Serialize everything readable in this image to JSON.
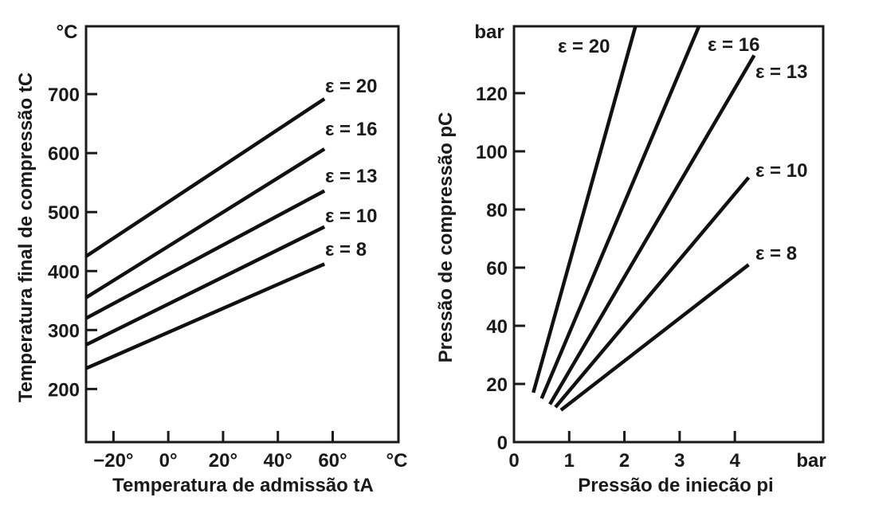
{
  "colors": {
    "ink": "#111111",
    "background": "#ffffff"
  },
  "chart_data": [
    {
      "type": "line",
      "ylabel": "Temperatura final de compressão tC",
      "xlabel": "Temperatura de admissão tA",
      "x_unit": "°C",
      "y_unit": "°C",
      "xlim": [
        -30,
        84
      ],
      "ylim": [
        110,
        815
      ],
      "x_ticks": [
        {
          "value": -20,
          "label": "-20°"
        },
        {
          "value": 0,
          "label": "0°"
        },
        {
          "value": 20,
          "label": "20°"
        },
        {
          "value": 40,
          "label": "40°"
        },
        {
          "value": 60,
          "label": "60°"
        }
      ],
      "y_ticks": [
        {
          "value": 200,
          "label": "200"
        },
        {
          "value": 300,
          "label": "300"
        },
        {
          "value": 400,
          "label": "400"
        },
        {
          "value": 500,
          "label": "500"
        },
        {
          "value": 600,
          "label": "600"
        },
        {
          "value": 700,
          "label": "700"
        }
      ],
      "grid": false,
      "series": [
        {
          "name": "ε = 20",
          "x": [
            -30,
            57
          ],
          "y": [
            425,
            692
          ]
        },
        {
          "name": "ε = 16",
          "x": [
            -30,
            57
          ],
          "y": [
            355,
            607
          ]
        },
        {
          "name": "ε = 13",
          "x": [
            -30,
            57
          ],
          "y": [
            320,
            536
          ]
        },
        {
          "name": "ε = 10",
          "x": [
            -30,
            57
          ],
          "y": [
            275,
            475
          ]
        },
        {
          "name": "ε = 8",
          "x": [
            -30,
            57
          ],
          "y": [
            235,
            412
          ]
        }
      ]
    },
    {
      "type": "line",
      "ylabel": "Pressão de compressão pC",
      "xlabel": "Pressão de iniecão pi",
      "x_unit": "bar",
      "y_unit": "bar",
      "xlim": [
        0,
        5.6
      ],
      "ylim": [
        0,
        143
      ],
      "x_ticks": [
        {
          "value": 0,
          "label": "0"
        },
        {
          "value": 1,
          "label": "1"
        },
        {
          "value": 2,
          "label": "2"
        },
        {
          "value": 3,
          "label": "3"
        },
        {
          "value": 4,
          "label": "4"
        }
      ],
      "y_ticks": [
        {
          "value": 0,
          "label": "0"
        },
        {
          "value": 20,
          "label": "20"
        },
        {
          "value": 40,
          "label": "40"
        },
        {
          "value": 60,
          "label": "60"
        },
        {
          "value": 80,
          "label": "80"
        },
        {
          "value": 100,
          "label": "100"
        },
        {
          "value": 120,
          "label": "120"
        }
      ],
      "grid": false,
      "series": [
        {
          "name": "ε = 20",
          "x": [
            0.35,
            2.2
          ],
          "y": [
            17,
            143
          ]
        },
        {
          "name": "ε = 16",
          "x": [
            0.5,
            3.35
          ],
          "y": [
            15,
            143
          ]
        },
        {
          "name": "ε = 13",
          "x": [
            0.65,
            4.35
          ],
          "y": [
            13,
            133
          ]
        },
        {
          "name": "ε = 10",
          "x": [
            0.75,
            4.25
          ],
          "y": [
            12,
            91
          ]
        },
        {
          "name": "ε = 8",
          "x": [
            0.85,
            4.25
          ],
          "y": [
            11,
            61
          ]
        }
      ]
    }
  ]
}
